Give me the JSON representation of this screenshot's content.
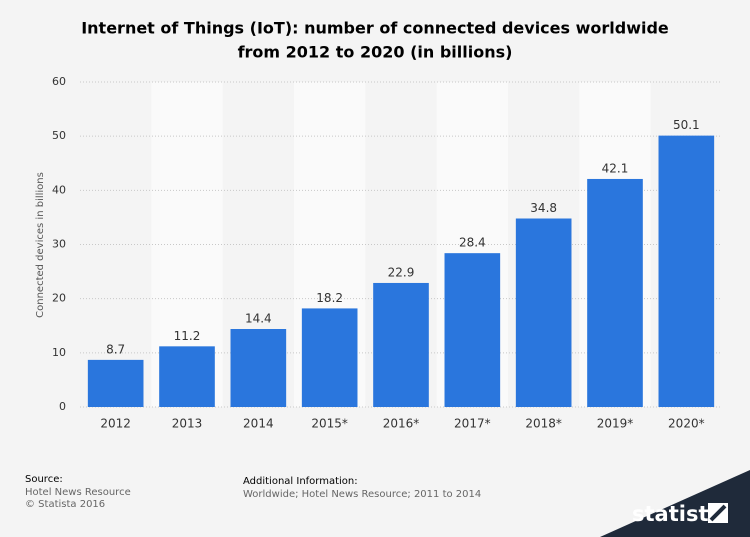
{
  "chart_data": {
    "type": "bar",
    "title": [
      "Internet of Things (IoT): number of connected devices worldwide",
      "from 2012 to 2020 (in billions)"
    ],
    "y_label": "Connected devices in billions",
    "categories": [
      "2012",
      "2013",
      "2014",
      "2015*",
      "2016*",
      "2017*",
      "2018*",
      "2019*",
      "2020*"
    ],
    "values": [
      8.7,
      11.2,
      14.4,
      18.2,
      22.9,
      28.4,
      34.8,
      42.1,
      50.1
    ],
    "color": "#2a76dd",
    "ylim": [
      0,
      60
    ],
    "yticks": [
      0,
      10,
      20,
      30,
      40,
      50,
      60
    ],
    "grid": true,
    "alternate_bands": true,
    "source_label": "Source:",
    "source": [
      "Hotel News Resource",
      "© Statista 2016"
    ],
    "additional_info_label": "Additional Information:",
    "additional_info": "Worldwide; Hotel News Resource; 2011 to 2014",
    "logo": "statista"
  }
}
